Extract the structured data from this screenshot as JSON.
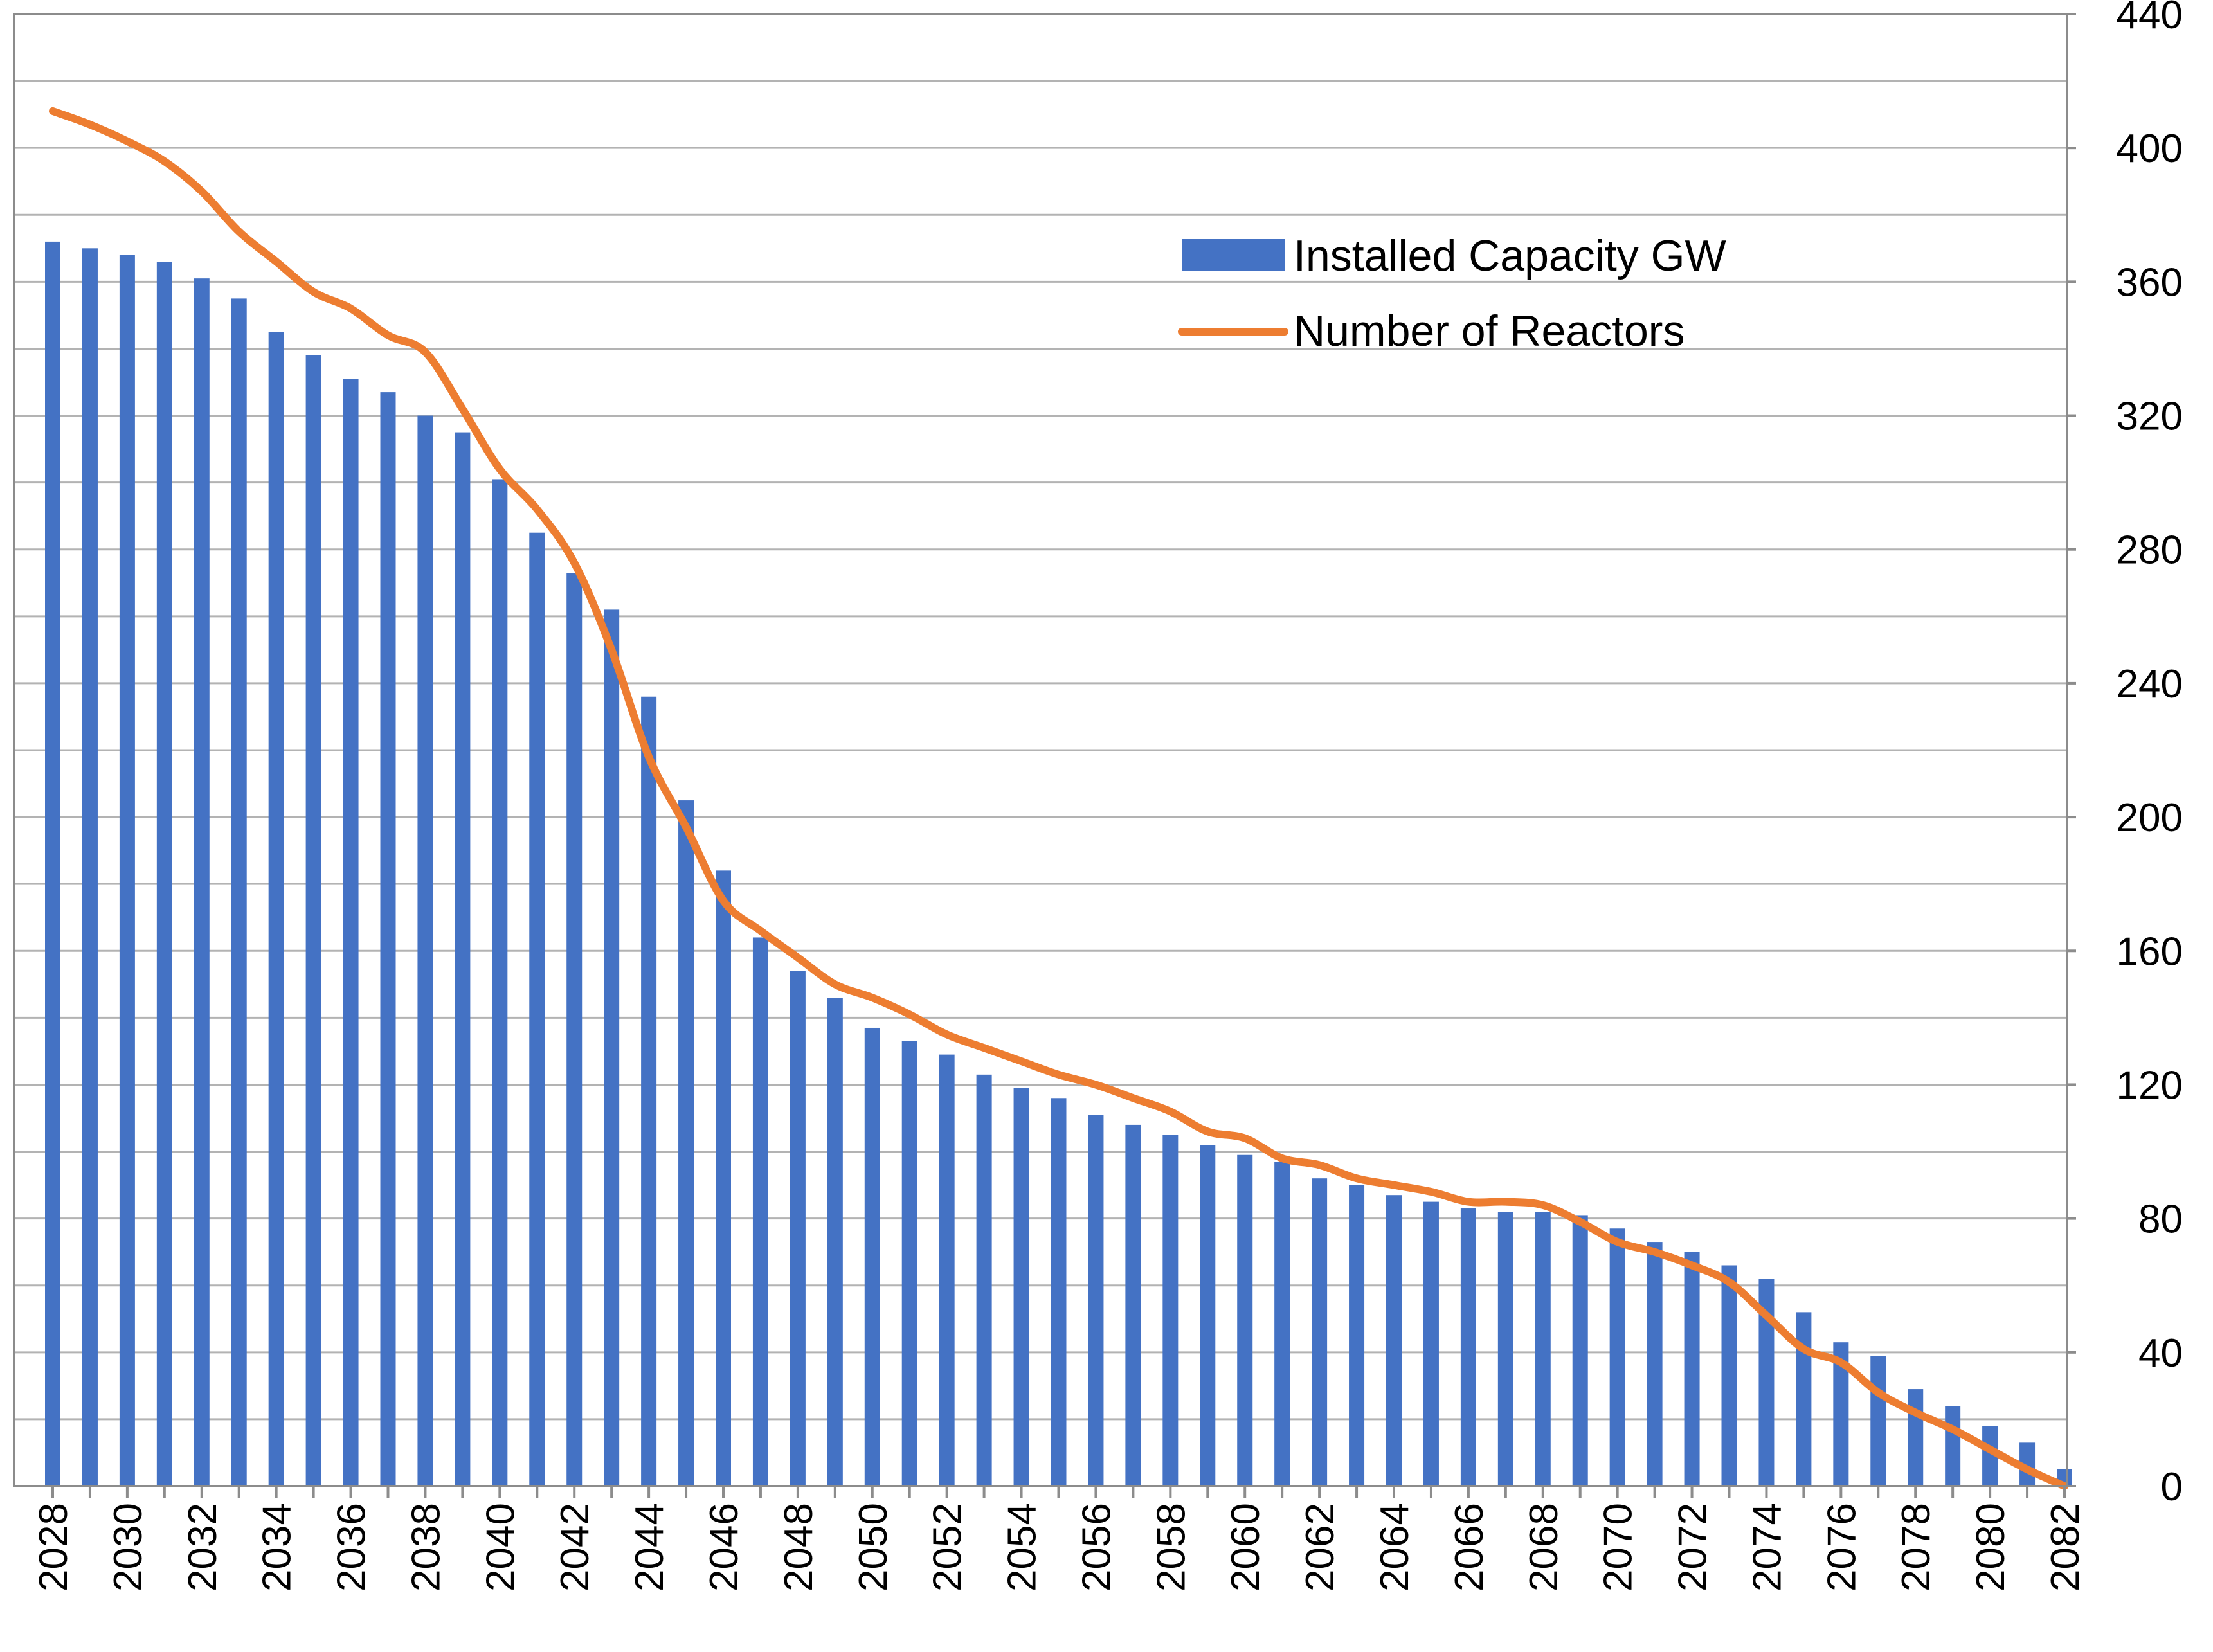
{
  "chart_data": {
    "type": "bar",
    "title": "",
    "xlabel": "",
    "ylabel": "",
    "ylim": [
      0,
      440
    ],
    "y_ticks": [
      "0",
      "40",
      "80",
      "120",
      "160",
      "200",
      "240",
      "280",
      "320",
      "360",
      "400",
      "440"
    ],
    "y_axis_position": "right",
    "legend_position": "top-right",
    "grid": true,
    "x": [
      "2028",
      "2029",
      "2030",
      "2031",
      "2032",
      "2033",
      "2034",
      "2035",
      "2036",
      "2037",
      "2038",
      "2039",
      "2040",
      "2041",
      "2042",
      "2043",
      "2044",
      "2045",
      "2046",
      "2047",
      "2048",
      "2049",
      "2050",
      "2051",
      "2052",
      "2053",
      "2054",
      "2055",
      "2056",
      "2057",
      "2058",
      "2059",
      "2060",
      "2061",
      "2062",
      "2063",
      "2064",
      "2065",
      "2066",
      "2067",
      "2068",
      "2069",
      "2070",
      "2071",
      "2072",
      "2073",
      "2074",
      "2075",
      "2076",
      "2077",
      "2078",
      "2079",
      "2080",
      "2081",
      "2082"
    ],
    "x_tick_labels": [
      "2028",
      "2030",
      "2032",
      "2034",
      "2036",
      "2038",
      "2040",
      "2042",
      "2044",
      "2046",
      "2048",
      "2050",
      "2052",
      "2054",
      "2056",
      "2058",
      "2060",
      "2062",
      "2064",
      "2066",
      "2068",
      "2070",
      "2072",
      "2074",
      "2076",
      "2078",
      "2080",
      "2082"
    ],
    "series": [
      {
        "name": "Installed Capacity GW",
        "type": "bar",
        "color": "#4472c4",
        "values": [
          372,
          370,
          368,
          366,
          361,
          355,
          345,
          338,
          331,
          327,
          320,
          315,
          301,
          285,
          273,
          262,
          236,
          205,
          184,
          164,
          154,
          146,
          137,
          133,
          129,
          123,
          119,
          116,
          111,
          108,
          105,
          102,
          99,
          97,
          92,
          90,
          87,
          85,
          83,
          82,
          82,
          81,
          77,
          73,
          70,
          66,
          62,
          52,
          43,
          39,
          29,
          24,
          18,
          13,
          5
        ]
      },
      {
        "name": "Number of Reactors",
        "type": "line",
        "color": "#ed7d31",
        "values": [
          411,
          407,
          402,
          396,
          387,
          375,
          366,
          357,
          352,
          344,
          339,
          322,
          304,
          292,
          276,
          250,
          218,
          197,
          175,
          166,
          158,
          150,
          146,
          141,
          135,
          131,
          127,
          123,
          120,
          116,
          112,
          106,
          104,
          98,
          96,
          92,
          90,
          88,
          85,
          85,
          84,
          79,
          73,
          70,
          66,
          61,
          51,
          41,
          37,
          28,
          22,
          17,
          11,
          5,
          0
        ]
      }
    ]
  }
}
